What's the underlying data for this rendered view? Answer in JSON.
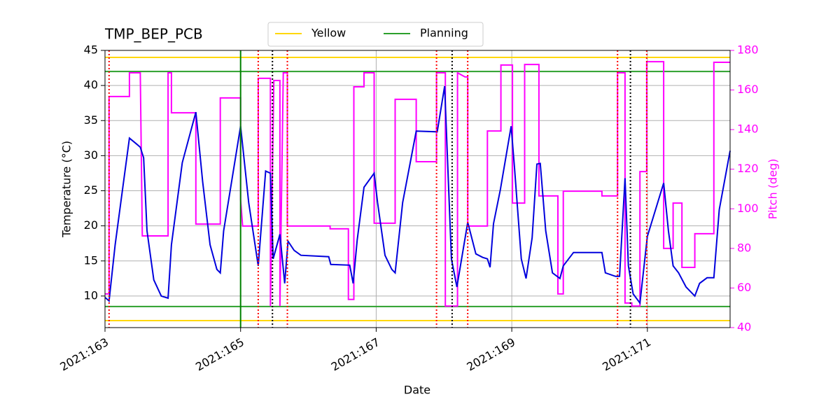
{
  "chart_data": {
    "type": "line",
    "title": "TMP_BEP_PCB",
    "xlabel": "Date",
    "ylabel": "Temperature (°C)",
    "y2label": "Pitch (deg)",
    "xlim": [
      163,
      172.22
    ],
    "ylim": [
      5.5,
      45
    ],
    "y2lim": [
      40,
      180
    ],
    "xticks": [
      {
        "value": 163,
        "label": "2021:163"
      },
      {
        "value": 165,
        "label": "2021:165"
      },
      {
        "value": 167,
        "label": "2021:167"
      },
      {
        "value": 169,
        "label": "2021:169"
      },
      {
        "value": 171,
        "label": "2021:171"
      }
    ],
    "yticks": [
      10,
      15,
      20,
      25,
      30,
      35,
      40,
      45
    ],
    "y2ticks": [
      40,
      60,
      80,
      100,
      120,
      140,
      160,
      180
    ],
    "grid": true,
    "legend": "upper center",
    "hlines": [
      {
        "name": "Yellow",
        "color": "#ffd700",
        "values": [
          44,
          6.5
        ]
      },
      {
        "name": "Planning",
        "color": "#2ca02c",
        "values": [
          42,
          8.5
        ]
      }
    ],
    "vlines": [
      {
        "color": "#008000",
        "style": "solid",
        "values": [
          165
        ]
      },
      {
        "color": "#ff0000",
        "style": "dotted",
        "values": [
          163.06,
          165.26,
          165.69,
          167.89,
          168.35,
          170.56,
          170.99
        ]
      },
      {
        "color": "#000000",
        "style": "dotted",
        "values": [
          165.47,
          168.12,
          170.75
        ]
      }
    ],
    "series": [
      {
        "color": "#0000dd",
        "axis": "y",
        "x": [
          163.0,
          163.06,
          163.15,
          163.26,
          163.36,
          163.46,
          163.52,
          163.57,
          163.62,
          163.72,
          163.83,
          163.93,
          163.98,
          164.14,
          164.34,
          164.44,
          164.55,
          164.65,
          164.7,
          164.75,
          165.0,
          165.12,
          165.26,
          165.37,
          165.44,
          165.48,
          165.58,
          165.65,
          165.7,
          165.79,
          165.89,
          166.3,
          166.33,
          166.61,
          166.66,
          166.72,
          166.82,
          166.97,
          167.02,
          167.13,
          167.23,
          167.28,
          167.39,
          167.59,
          167.9,
          168.01,
          168.11,
          168.19,
          168.35,
          168.47,
          168.57,
          168.64,
          168.68,
          168.73,
          168.83,
          168.99,
          169.04,
          169.14,
          169.21,
          169.3,
          169.37,
          169.42,
          169.5,
          169.6,
          169.71,
          169.76,
          169.91,
          170.33,
          170.38,
          170.53,
          170.59,
          170.67,
          170.72,
          170.79,
          170.89,
          171.0,
          171.24,
          171.31,
          171.38,
          171.46,
          171.57,
          171.7,
          171.77,
          171.88,
          171.98,
          172.06,
          172.22
        ],
        "values": [
          9.8,
          9.3,
          17.3,
          25.3,
          32.5,
          31.7,
          31.2,
          29.7,
          19.3,
          12.3,
          10.0,
          9.7,
          17.3,
          29,
          36.2,
          26.3,
          17.3,
          13.8,
          13.3,
          19.3,
          34.2,
          23.3,
          14.3,
          27.8,
          27.5,
          15.3,
          18.8,
          11.8,
          17.8,
          16.5,
          15.8,
          15.6,
          14.5,
          14.4,
          11.8,
          18,
          25.5,
          27.5,
          23.3,
          15.8,
          13.8,
          13.3,
          23.3,
          33.5,
          33.4,
          39.9,
          15.3,
          11.3,
          20.5,
          16,
          15.5,
          15.3,
          14.1,
          20.3,
          25.1,
          34.2,
          28.3,
          15.3,
          12.5,
          18.3,
          28.8,
          28.9,
          19.3,
          13.3,
          12.5,
          14.3,
          16.2,
          16.2,
          13.3,
          12.8,
          12.8,
          26.8,
          14.3,
          10.3,
          9.0,
          18.5,
          26.1,
          19.3,
          14.3,
          13.3,
          11.3,
          10.0,
          11.8,
          12.6,
          12.6,
          22.3,
          30.7
        ]
      },
      {
        "color": "#ff00ff",
        "axis": "y2",
        "x": [
          163.0,
          163.06,
          163.06,
          163.36,
          163.36,
          163.52,
          163.55,
          163.93,
          163.93,
          163.98,
          163.98,
          164.34,
          164.34,
          164.7,
          164.7,
          165.0,
          165.0,
          165.03,
          165.26,
          165.26,
          165.44,
          165.44,
          165.49,
          165.58,
          165.58,
          165.63,
          165.69,
          165.69,
          166.32,
          166.32,
          166.59,
          166.59,
          166.67,
          166.67,
          166.82,
          166.82,
          166.97,
          166.97,
          167.28,
          167.28,
          167.59,
          167.59,
          167.89,
          167.89,
          168.02,
          168.02,
          168.2,
          168.2,
          168.31,
          168.35,
          168.35,
          168.64,
          168.64,
          168.84,
          168.84,
          169.01,
          169.01,
          169.19,
          169.19,
          169.4,
          169.4,
          169.68,
          169.68,
          169.76,
          169.76,
          170.33,
          170.33,
          170.56,
          170.56,
          170.67,
          170.67,
          170.77,
          170.77,
          170.89,
          170.89,
          170.99,
          170.99,
          171.24,
          171.24,
          171.38,
          171.38,
          171.51,
          171.51,
          171.7,
          171.7,
          171.98,
          171.98,
          172.22
        ],
        "values": [
          57,
          57,
          156.7,
          156.7,
          168.7,
          168.7,
          86.3,
          86.3,
          168.7,
          168.7,
          148.5,
          148.5,
          92.3,
          92.3,
          156.0,
          156.0,
          104.7,
          91.3,
          91.3,
          165.9,
          165.9,
          50.9,
          164.8,
          164.8,
          50.9,
          168.7,
          168.7,
          91.3,
          91.3,
          89.9,
          89.9,
          54.2,
          54.2,
          161.6,
          161.6,
          168.7,
          168.7,
          92.7,
          92.7,
          155.3,
          155.3,
          123.8,
          123.8,
          168.7,
          168.7,
          50.9,
          50.9,
          168.7,
          166.6,
          166.6,
          91.3,
          91.3,
          139.3,
          139.3,
          172.6,
          172.6,
          102.9,
          102.9,
          172.9,
          172.9,
          106.5,
          106.5,
          57,
          57,
          108.9,
          108.9,
          106.5,
          106.5,
          168.7,
          168.7,
          52.4,
          52.4,
          50.9,
          50.9,
          118.8,
          118.8,
          174.3,
          174.3,
          80,
          80,
          102.9,
          102.9,
          70.4,
          70.4,
          87.4,
          87.4,
          174,
          174
        ]
      }
    ]
  }
}
